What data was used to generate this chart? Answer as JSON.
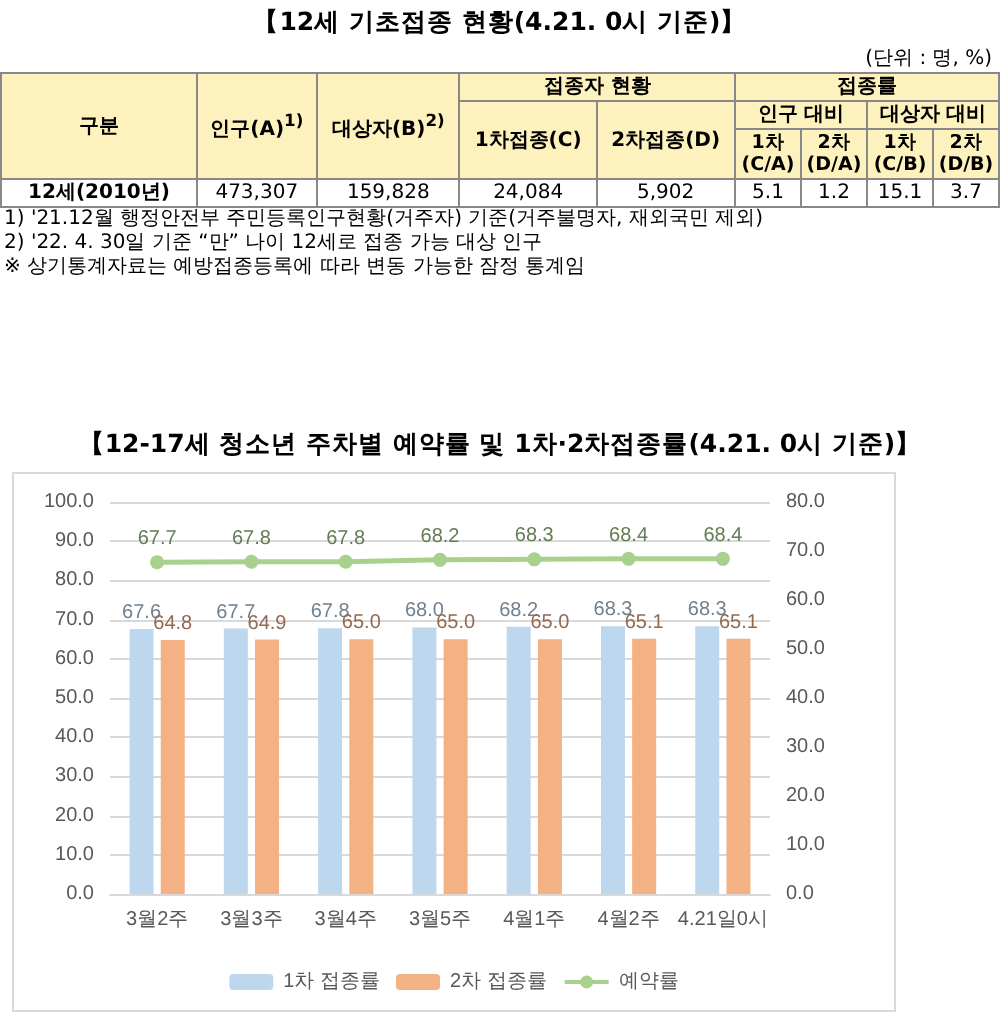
{
  "chart_data": [
    {
      "type": "other",
      "title": "【12세 기초접종 현황(4.21. 0시 기준)】",
      "annotations": [
        "(단위 : 명, %)",
        "구분",
        "인구(A)$^{1)}$",
        "대상자(B)$^{2)}$",
        "접종자 현황",
        "접종률",
        "1차접종(C)",
        "2차접종(D)",
        "인구 대비",
        "대상자 대비",
        "1차 (C/A)",
        "2차 (D/A)",
        "1차 (C/B)",
        "2차 (D/B)",
        "12세(2010년)",
        "473,307",
        "159,828",
        "24,084",
        "5,902",
        "5.1",
        "1.2",
        "15.1",
        "3.7",
        "1) '21.12월 행정안전부 주민등록인구현황(거주자) 기준(거주불명자, 재외국민 제외)",
        "2) '22. 4. 30일 기준 “만” 나이 12세로 접종 가능 대상 인구",
        "※ 상기통계자료는 예방접종등록에 따라 변동 가능한 잠정 통계임"
      ]
    },
    {
      "type": "bar",
      "title": "【12-17세 청소년 주차별 예약률 및 1차·2차접종률(4.21. 0시 기준)】",
      "categories": [
        "3월2주",
        "3월3주",
        "3월4주",
        "3월5주",
        "4월1주",
        "4월2주",
        "4.21일0시"
      ],
      "series": [
        {
          "name": "1차 접종률",
          "type": "bar",
          "color": "#bdd7ee",
          "values": [
            67.6,
            67.7,
            67.8,
            68.0,
            68.2,
            68.3,
            68.3
          ],
          "value_labels": [
            "67.6",
            "67.7",
            "67.8",
            "68.0",
            "68.2",
            "68.3",
            "68.3"
          ]
        },
        {
          "name": "2차 접종률",
          "type": "bar",
          "color": "#f4b183",
          "values": [
            64.8,
            64.9,
            65.0,
            65.0,
            65.0,
            65.1,
            65.1
          ],
          "value_labels": [
            "64.8",
            "64.9",
            "65.0",
            "65.0",
            "65.0",
            "65.1",
            "65.1"
          ]
        },
        {
          "name": "예약률",
          "type": "line",
          "axis": "y2",
          "color": "#a9d18e",
          "marker": "circle",
          "values": [
            67.7,
            67.8,
            67.8,
            68.2,
            68.3,
            68.4,
            68.4
          ],
          "value_labels": [
            "67.7",
            "67.8",
            "67.8",
            "68.2",
            "68.3",
            "68.4",
            "68.4"
          ]
        }
      ],
      "ylim": [
        0,
        100
      ],
      "yticks": [
        {
          "value": 0,
          "label": "0.0"
        },
        {
          "value": 10,
          "label": "10.0"
        },
        {
          "value": 20,
          "label": "20.0"
        },
        {
          "value": 30,
          "label": "30.0"
        },
        {
          "value": 40,
          "label": "40.0"
        },
        {
          "value": 50,
          "label": "50.0"
        },
        {
          "value": 60,
          "label": "60.0"
        },
        {
          "value": 70,
          "label": "70.0"
        },
        {
          "value": 80,
          "label": "80.0"
        },
        {
          "value": 90,
          "label": "90.0"
        },
        {
          "value": 100,
          "label": "100.0"
        }
      ],
      "y2lim": [
        0,
        80
      ],
      "y2ticks": [
        {
          "value": 0,
          "label": "0.0"
        },
        {
          "value": 10,
          "label": "10.0"
        },
        {
          "value": 20,
          "label": "20.0"
        },
        {
          "value": 30,
          "label": "30.0"
        },
        {
          "value": 40,
          "label": "40.0"
        },
        {
          "value": 50,
          "label": "50.0"
        },
        {
          "value": 60,
          "label": "60.0"
        },
        {
          "value": 70,
          "label": "70.0"
        },
        {
          "value": 80,
          "label": "80.0"
        }
      ],
      "grid": "y",
      "legend": "bottom"
    }
  ]
}
